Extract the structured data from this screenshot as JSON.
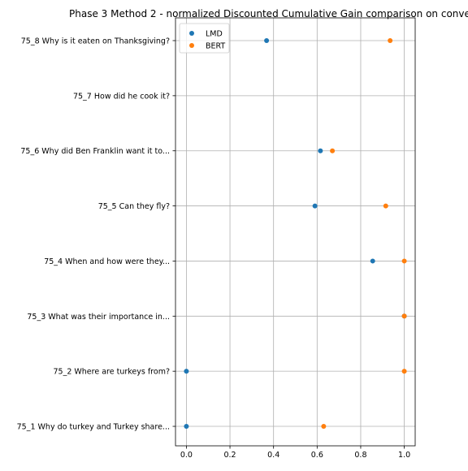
{
  "chart_data": {
    "type": "scatter",
    "title": "Phase 3 Method 2 - normalized Discounted Cumulative Gain comparison on conve",
    "xlabel": "",
    "ylabel": "",
    "xlim": [
      -0.05,
      1.05
    ],
    "x_ticks": [
      "0.0",
      "0.2",
      "0.4",
      "0.6",
      "0.8",
      "1.0"
    ],
    "grid": true,
    "legend_position": "top-left",
    "categories": [
      "75_1 Why do turkey and Turkey share...",
      "75_2 Where are turkeys from?",
      "75_3 What was their importance in...",
      "75_4 When and how were they...",
      "75_5 Can they fly?",
      "75_6 Why did Ben Franklin want it to...",
      "75_7 How did he cook it?",
      "75_8 Why is it eaten on Thanksgiving?"
    ],
    "series": [
      {
        "name": "LMD",
        "color": "#1f77b4",
        "values": [
          0.0,
          0.0,
          1.0,
          0.855,
          0.59,
          0.615,
          null,
          0.368
        ]
      },
      {
        "name": "BERT",
        "color": "#ff7f0e",
        "values": [
          0.63,
          1.0,
          1.0,
          1.0,
          0.915,
          0.67,
          null,
          0.935
        ]
      }
    ]
  }
}
